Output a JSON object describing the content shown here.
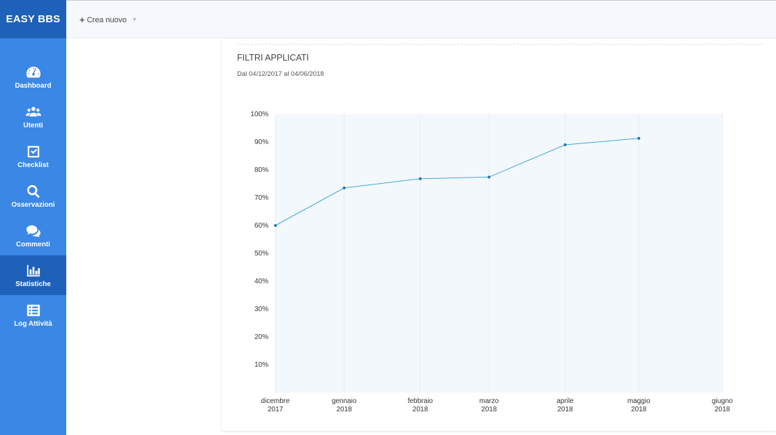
{
  "app": {
    "brand": "EASY BBS"
  },
  "sidebar": {
    "items": [
      {
        "label": "Dashboard",
        "icon": "dashboard-gauge-icon",
        "active": false
      },
      {
        "label": "Utenti",
        "icon": "users-icon",
        "active": false
      },
      {
        "label": "Checklist",
        "icon": "checkbox-icon",
        "active": false
      },
      {
        "label": "Osservazioni",
        "icon": "search-icon",
        "active": false
      },
      {
        "label": "Commenti",
        "icon": "comments-icon",
        "active": false
      },
      {
        "label": "Statistiche",
        "icon": "bar-chart-icon",
        "active": true
      },
      {
        "label": "Log Attività",
        "icon": "list-icon",
        "active": false
      }
    ]
  },
  "topbar": {
    "create_label": "Crea nuovo"
  },
  "filters": {
    "title": "FILTRI APPLICATI",
    "range": "Dal 04/12/2017 al 04/06/2018"
  },
  "chart_data": {
    "type": "line",
    "categories": [
      [
        "dicembre",
        "2017"
      ],
      [
        "gennaio",
        "2018"
      ],
      [
        "febbraio",
        "2018"
      ],
      [
        "marzo",
        "2018"
      ],
      [
        "aprile",
        "2018"
      ],
      [
        "maggio",
        "2018"
      ],
      [
        "giugno",
        "2018"
      ]
    ],
    "category_dates": [
      "2017-12-04",
      "2018-01-01",
      "2018-02-01",
      "2018-03-01",
      "2018-04-01",
      "2018-05-01",
      "2018-06-04"
    ],
    "series": [
      {
        "points": [
          {
            "date": "2017-12-04",
            "value": 60
          },
          {
            "date": "2018-01-01",
            "value": 73.5
          },
          {
            "date": "2018-02-01",
            "value": 76.8
          },
          {
            "date": "2018-03-01",
            "value": 77.4
          },
          {
            "date": "2018-04-01",
            "value": 89
          },
          {
            "date": "2018-05-01",
            "value": 91.3
          }
        ],
        "color": "#3fa9d8"
      }
    ],
    "ylim": [
      0,
      100
    ],
    "yticks": [
      "10%",
      "20%",
      "30%",
      "40%",
      "50%",
      "60%",
      "70%",
      "80%",
      "90%",
      "100%"
    ],
    "ytick_values": [
      10,
      20,
      30,
      40,
      50,
      60,
      70,
      80,
      90,
      100
    ],
    "grid": true,
    "plot_background": "#f3f8fd",
    "grid_color": "#e4ebf3"
  }
}
